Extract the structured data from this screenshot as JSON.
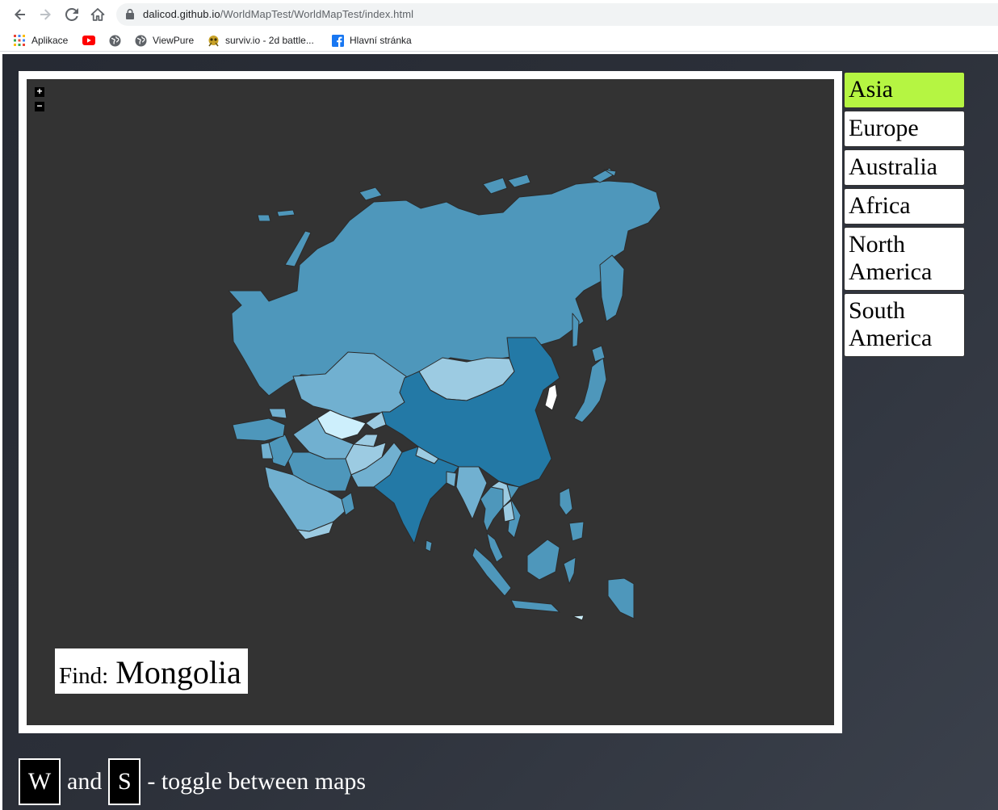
{
  "browser": {
    "url_host": "dalicod.github.io",
    "url_path": "/WorldMapTest/WorldMapTest/index.html",
    "nav_icons": [
      "back-arrow-icon",
      "forward-arrow-icon",
      "reload-icon",
      "home-icon"
    ],
    "bookmarks": [
      {
        "label": "Aplikace",
        "icon": "apps-grid-icon"
      },
      {
        "label": "",
        "icon": "youtube-icon"
      },
      {
        "label": "",
        "icon": "globe-icon"
      },
      {
        "label": "ViewPure",
        "icon": "globe-icon"
      },
      {
        "label": "surviv.io - 2d battle...",
        "icon": "surviv-icon"
      },
      {
        "label": "Hlavní stránka",
        "icon": "facebook-icon"
      }
    ]
  },
  "map": {
    "zoom_in_label": "+",
    "zoom_out_label": "−",
    "find_label": "Find:",
    "find_country": "Mongolia",
    "colors": {
      "background": "#333333",
      "frame": "#ffffff",
      "land_base": "#4e97bb",
      "land_dark": "#2379a6",
      "land_light": "#71b0d0",
      "land_lighter": "#9ccbe2",
      "land_lightest": "#cdeffc",
      "highlight": "#ffffff",
      "border": "#2b2b2b"
    }
  },
  "continents": {
    "active": "Asia",
    "active_color": "#b5f542",
    "items": [
      "Asia",
      "Europe",
      "Australia",
      "Africa",
      "North America",
      "South America"
    ]
  },
  "hint": {
    "key_w": "W",
    "and_text": "and",
    "key_s": "S",
    "description": "- toggle between maps"
  }
}
